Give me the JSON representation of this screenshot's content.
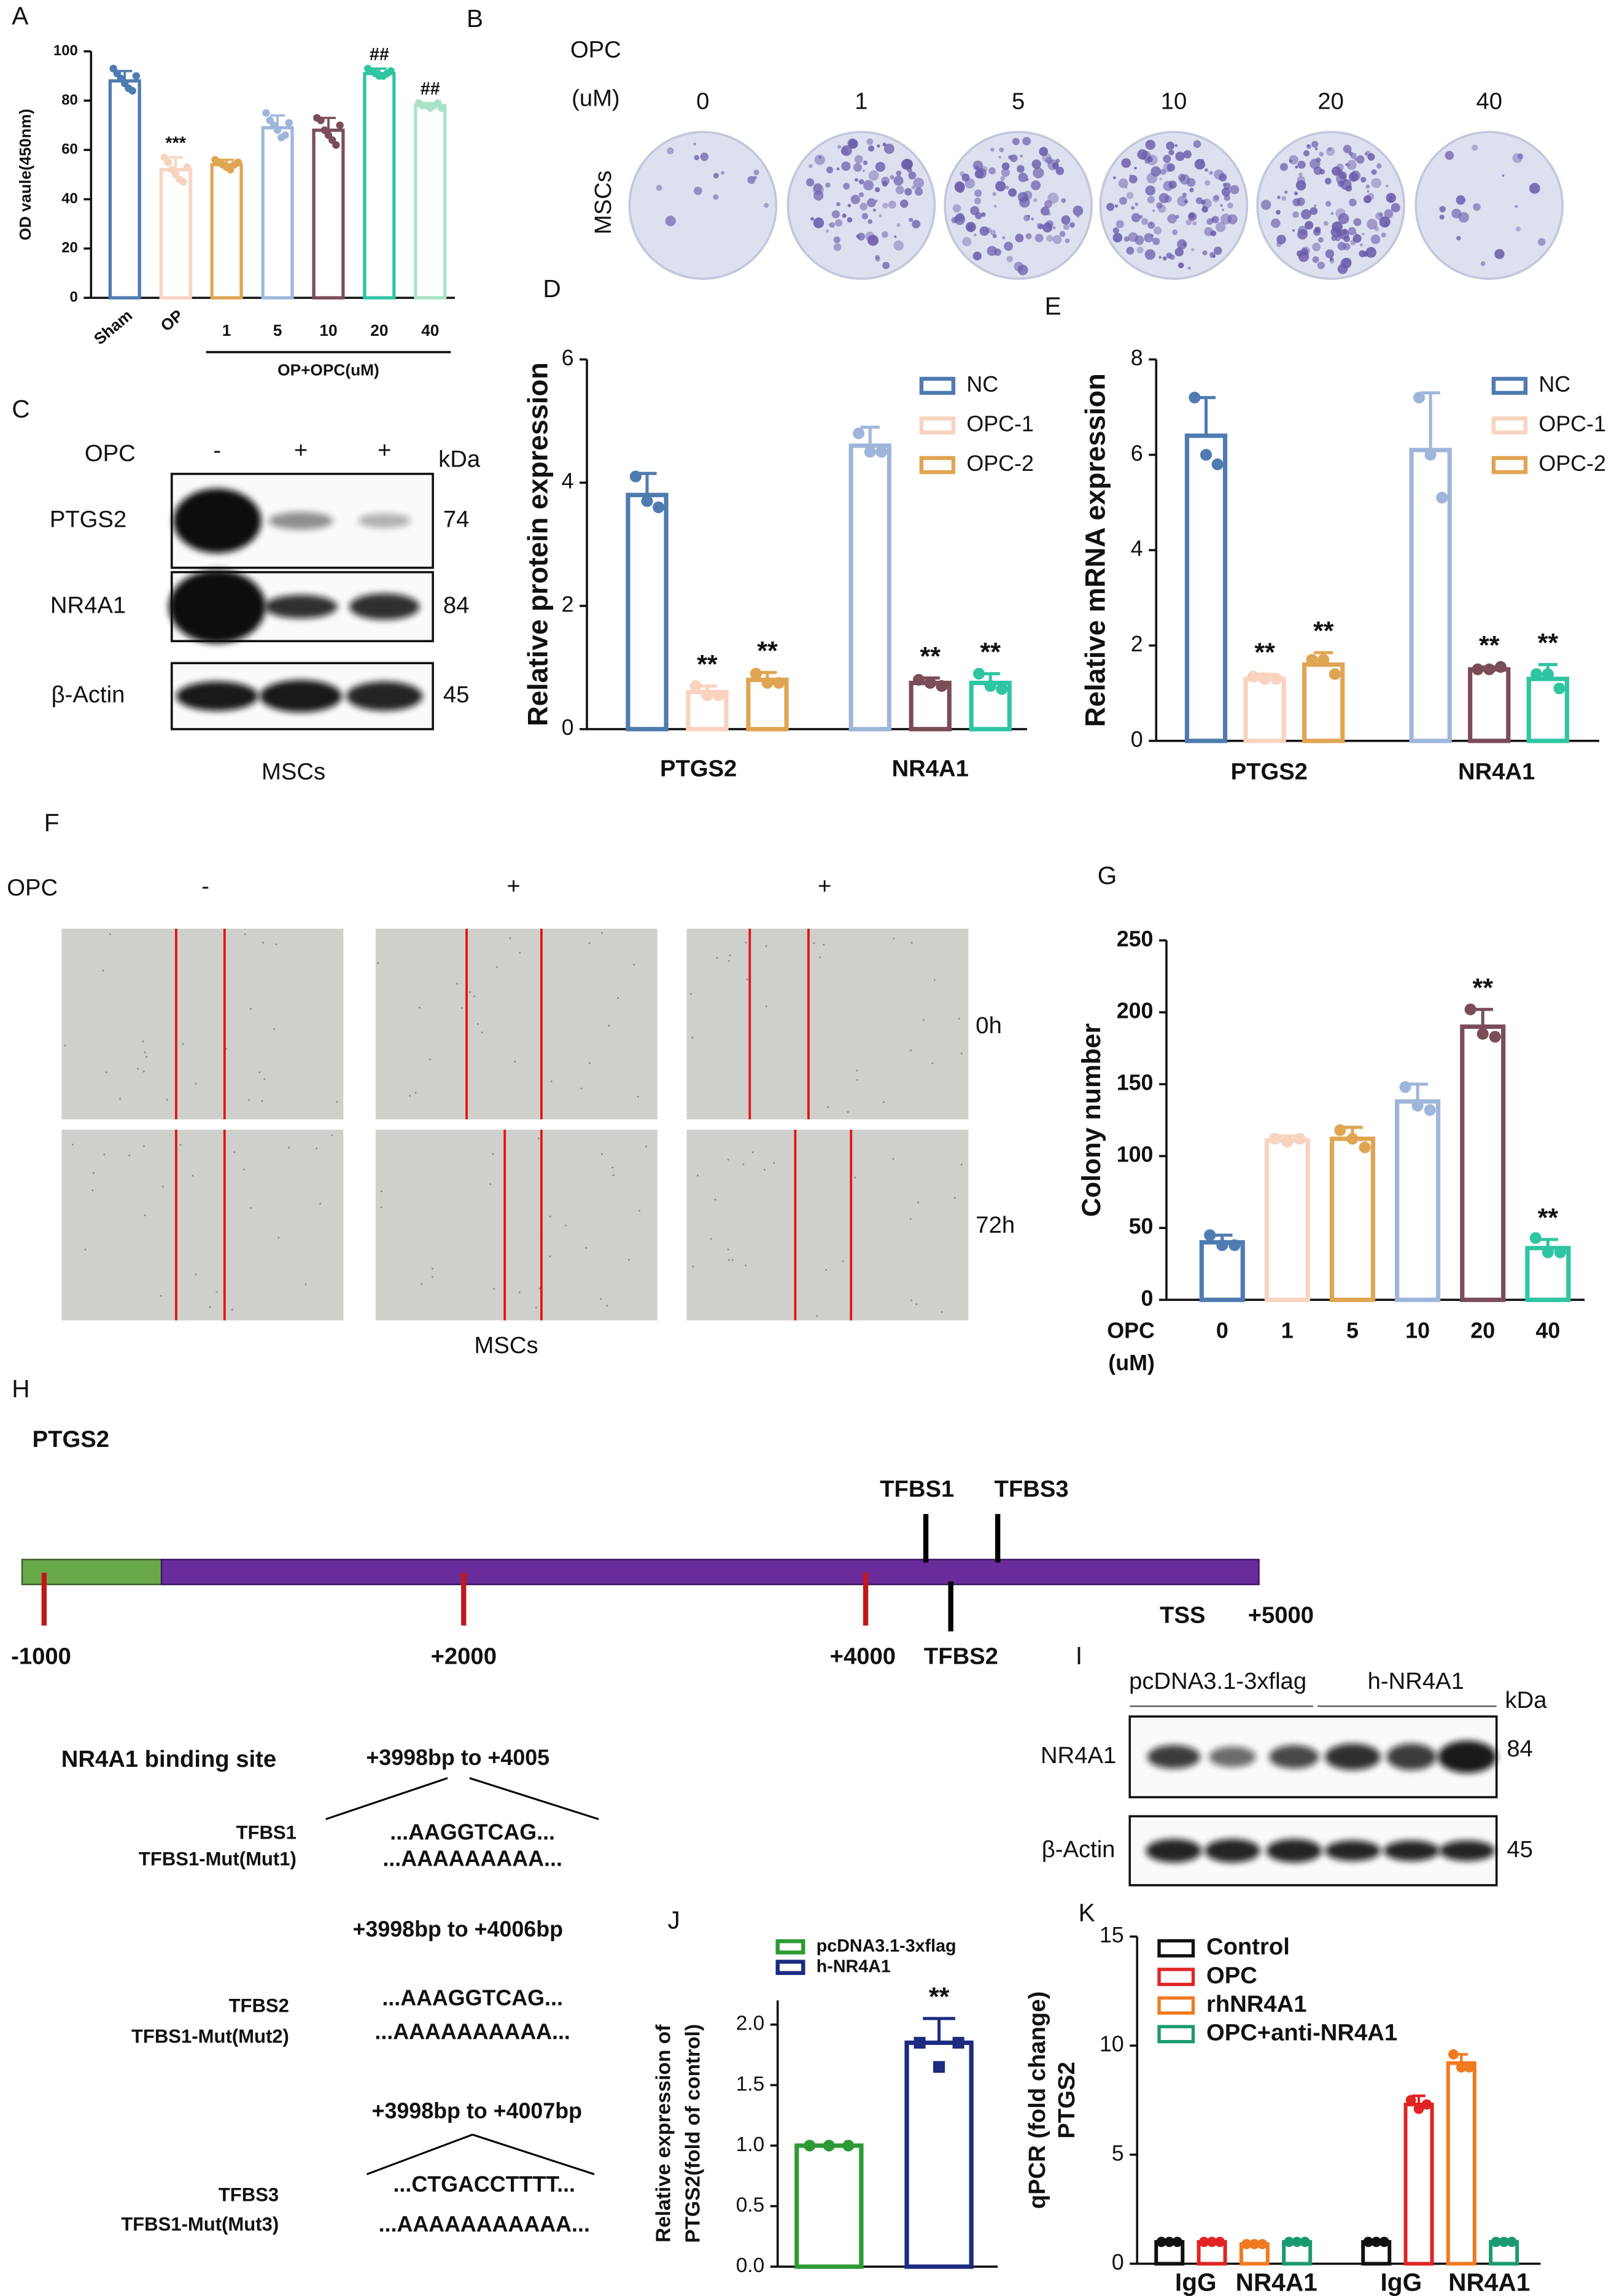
{
  "panel_b": {
    "label": "B",
    "title": [
      "OPC",
      "(uM)"
    ],
    "doses": [
      0,
      1,
      5,
      10,
      20,
      40
    ],
    "cell": "MSCs"
  },
  "panel_c": {
    "label": "C",
    "treatment": "OPC",
    "lanes": [
      "-",
      "+",
      "+"
    ],
    "unit": "kDa",
    "rows": [
      {
        "name": "PTGS2",
        "kda": 74
      },
      {
        "name": "NR4A1",
        "kda": 84
      },
      {
        "name": "β-Actin",
        "kda": 45
      }
    ],
    "cell": "MSCs"
  },
  "panel_f": {
    "label": "F",
    "treatment": "OPC",
    "lanes": [
      "-",
      "+",
      "+"
    ],
    "times": [
      "0h",
      "72h"
    ],
    "cell": "MSCs"
  },
  "panel_h": {
    "label": "H",
    "gene": "PTGS2",
    "sites_above": [
      "TFBS1",
      "TFBS3"
    ],
    "site_below": "TFBS2",
    "positions": [
      "-1000",
      "+2000",
      "+4000"
    ],
    "tss": "TSS",
    "end": "+5000",
    "binding_title": "NR4A1 binding site",
    "sites": [
      {
        "range": "+3998bp to +4005",
        "name": "TFBS1",
        "mutant": "TFBS1-Mut(Mut1)",
        "sequence": "...AAGGTCAG...",
        "mutant_sequence": "...AAAAAAAAA..."
      },
      {
        "range": "+3998bp to +4006bp",
        "name": "TFBS2",
        "mutant": "TFBS1-Mut(Mut2)",
        "sequence": "...AAAGGTCAG...",
        "mutant_sequence": "...AAAAAAAAAA..."
      },
      {
        "range": "+3998bp to +4007bp",
        "name": "TFBS3",
        "mutant": "TFBS1-Mut(Mut3)",
        "sequence": "...CTGACCTTTT...",
        "mutant_sequence": "...AAAAAAAAAAA..."
      }
    ]
  },
  "panel_i": {
    "label": "I",
    "groups": [
      "pcDNA3.1-3xflag",
      "h-NR4A1"
    ],
    "unit": "kDa",
    "rows": [
      {
        "name": "NR4A1",
        "kda": 84
      },
      {
        "name": "β-Actin",
        "kda": 45
      }
    ]
  },
  "chart_data": [
    {
      "label": "A",
      "type": "bar",
      "ylabel": "OD vaule(450nm)",
      "categories": [
        "Sham",
        "OP",
        "1",
        "5",
        "10",
        "20",
        "40"
      ],
      "group_label": "OP+OPC(uM)",
      "ylim": [
        0,
        100
      ],
      "yticks": [
        0,
        20,
        40,
        60,
        80,
        100
      ],
      "series": [
        {
          "colors": [
            "#4f7bb0",
            "#f9d3bf",
            "#e0a552",
            "#9fb6db",
            "#7b4d58",
            "#2fc4a2",
            "#a9e2c9"
          ],
          "values": [
            88,
            52,
            54,
            69,
            68,
            91,
            78
          ],
          "errors": [
            4,
            5,
            2,
            5,
            5,
            2,
            1
          ],
          "points": [
            [
              93,
              91,
              89,
              87,
              85,
              84,
              90
            ],
            [
              57,
              55,
              52,
              50,
              48,
              47,
              53
            ],
            [
              56,
              55,
              54,
              53,
              52,
              54,
              55
            ],
            [
              75,
              72,
              70,
              68,
              65,
              66,
              71
            ],
            [
              73,
              72,
              68,
              66,
              64,
              62,
              70
            ],
            [
              93,
              92,
              91,
              90,
              90,
              91,
              92
            ],
            [
              79,
              78,
              78,
              77,
              78,
              79,
              77
            ]
          ],
          "annotations": [
            null,
            "***",
            null,
            null,
            null,
            "##",
            "##"
          ]
        }
      ]
    },
    {
      "label": "D",
      "type": "bar",
      "ylabel": "Relative protein expression",
      "categories": [
        "PTGS2",
        "NR4A1"
      ],
      "ylim": [
        0,
        6
      ],
      "yticks": [
        0,
        2,
        4,
        6
      ],
      "series": [
        {
          "name": "NC",
          "colors": [
            "#4f7bb0",
            "#9fb6db"
          ],
          "values": [
            3.8,
            4.6
          ],
          "errors": [
            0.35,
            0.3
          ],
          "points": [
            [
              4.1,
              3.7,
              3.6
            ],
            [
              4.8,
              4.5,
              4.5
            ]
          ]
        },
        {
          "name": "OPC-1",
          "colors": [
            "#f9d3bf",
            "#7b4d58"
          ],
          "values": [
            0.6,
            0.75
          ],
          "errors": [
            0.1,
            0.08
          ],
          "points": [
            [
              0.7,
              0.55,
              0.55
            ],
            [
              0.8,
              0.75,
              0.7
            ]
          ],
          "annotations": [
            "**",
            "**"
          ]
        },
        {
          "name": "OPC-2",
          "colors": [
            "#e0a552",
            "#2fc4a2"
          ],
          "values": [
            0.8,
            0.75
          ],
          "errors": [
            0.12,
            0.15
          ],
          "points": [
            [
              0.9,
              0.75,
              0.75
            ],
            [
              0.9,
              0.7,
              0.65
            ]
          ],
          "annotations": [
            "**",
            "**"
          ]
        }
      ]
    },
    {
      "label": "E",
      "type": "bar",
      "ylabel": "Relative mRNA expression",
      "categories": [
        "PTGS2",
        "NR4A1"
      ],
      "ylim": [
        0,
        8
      ],
      "yticks": [
        0,
        2,
        4,
        6,
        8
      ],
      "series": [
        {
          "name": "NC",
          "colors": [
            "#4f7bb0",
            "#9fb6db"
          ],
          "values": [
            6.4,
            6.1
          ],
          "errors": [
            0.8,
            1.2
          ],
          "points": [
            [
              7.2,
              6.0,
              5.8
            ],
            [
              7.2,
              6.0,
              5.1
            ]
          ]
        },
        {
          "name": "OPC-1",
          "colors": [
            "#f9d3bf",
            "#7b4d58"
          ],
          "values": [
            1.3,
            1.5
          ],
          "errors": [
            0.1,
            0.05
          ],
          "points": [
            [
              1.35,
              1.3,
              1.3
            ],
            [
              1.5,
              1.5,
              1.55
            ]
          ],
          "annotations": [
            "**",
            "**"
          ]
        },
        {
          "name": "OPC-2",
          "colors": [
            "#e0a552",
            "#2fc4a2"
          ],
          "values": [
            1.6,
            1.3
          ],
          "errors": [
            0.25,
            0.3
          ],
          "points": [
            [
              1.7,
              1.7,
              1.4
            ],
            [
              1.4,
              1.4,
              1.1
            ]
          ],
          "annotations": [
            "**",
            "**"
          ]
        }
      ]
    },
    {
      "label": "G",
      "type": "bar",
      "ylabel": "Colony number",
      "xlabel": [
        "OPC",
        "(uM)"
      ],
      "categories": [
        "0",
        "1",
        "5",
        "10",
        "20",
        "40"
      ],
      "ylim": [
        0,
        250
      ],
      "yticks": [
        0,
        50,
        100,
        150,
        200,
        250
      ],
      "series": [
        {
          "colors": [
            "#4f7bb0",
            "#f9d3bf",
            "#e0a552",
            "#9fb6db",
            "#7b4d58",
            "#2fc4a2"
          ],
          "values": [
            40,
            111,
            112,
            138,
            190,
            36
          ],
          "errors": [
            5,
            3,
            8,
            12,
            12,
            6
          ],
          "points": [
            [
              45,
              38,
              38
            ],
            [
              112,
              110,
              112
            ],
            [
              118,
              112,
              106
            ],
            [
              148,
              135,
              132
            ],
            [
              202,
              185,
              183
            ],
            [
              43,
              33,
              33
            ]
          ],
          "annotations": [
            null,
            null,
            null,
            null,
            "**",
            "**"
          ]
        }
      ]
    },
    {
      "label": "J",
      "type": "bar",
      "ylabel": [
        "Relative expression of",
        "PTGS2(fold of control)"
      ],
      "ylim": [
        0,
        2.2
      ],
      "yticks": [
        {
          "value": 0,
          "label": "0.0"
        },
        {
          "value": 0.5,
          "label": "0.5"
        },
        {
          "value": 1,
          "label": "1.0"
        },
        {
          "value": 1.5,
          "label": "1.5"
        },
        {
          "value": 2,
          "label": "2.0"
        }
      ],
      "series": [
        {
          "name": "pcDNA3.1-3xflag",
          "color": "#2e9a35",
          "values": [
            1.0
          ],
          "errors": [
            0
          ],
          "points": [
            [
              1,
              1,
              1
            ]
          ]
        },
        {
          "name": "h-NR4A1",
          "color": "#1c2a80",
          "marker": "square",
          "values": [
            1.85
          ],
          "errors": [
            0.2
          ],
          "points": [
            [
              1.85,
              1.65,
              1.85
            ]
          ],
          "annotations": [
            "**"
          ]
        }
      ]
    },
    {
      "label": "K",
      "type": "bar",
      "ylabel": [
        "qPCR (fold change)",
        "PTGS2"
      ],
      "x_labels": [
        "IgG",
        "NR4A1",
        "IgG",
        "NR4A1"
      ],
      "ylim": [
        0,
        15
      ],
      "yticks": [
        0,
        5,
        10,
        15
      ],
      "series": [
        {
          "name": "Control",
          "color": "#111111",
          "values": [
            1,
            1
          ],
          "errors": [
            0.05,
            0.05
          ],
          "points": [
            [
              1,
              1,
              1
            ],
            [
              1,
              1,
              1
            ]
          ]
        },
        {
          "name": "OPC",
          "color": "#e02424",
          "values": [
            1,
            7.3
          ],
          "errors": [
            0.05,
            0.4
          ],
          "points": [
            [
              1,
              1,
              1
            ],
            [
              7.5,
              7.1,
              7.3
            ]
          ]
        },
        {
          "name": "rhNR4A1",
          "color": "#f07a20",
          "values": [
            0.9,
            9.2
          ],
          "errors": [
            0.05,
            0.4
          ],
          "points": [
            [
              0.9,
              0.9,
              0.9
            ],
            [
              9.6,
              9.0,
              9.0
            ]
          ]
        },
        {
          "name": "OPC+anti-NR4A1",
          "color": "#1a9a70",
          "values": [
            1,
            1
          ],
          "errors": [
            0.05,
            0.05
          ],
          "points": [
            [
              1,
              1,
              1
            ],
            [
              1,
              1,
              1
            ]
          ]
        }
      ]
    }
  ]
}
